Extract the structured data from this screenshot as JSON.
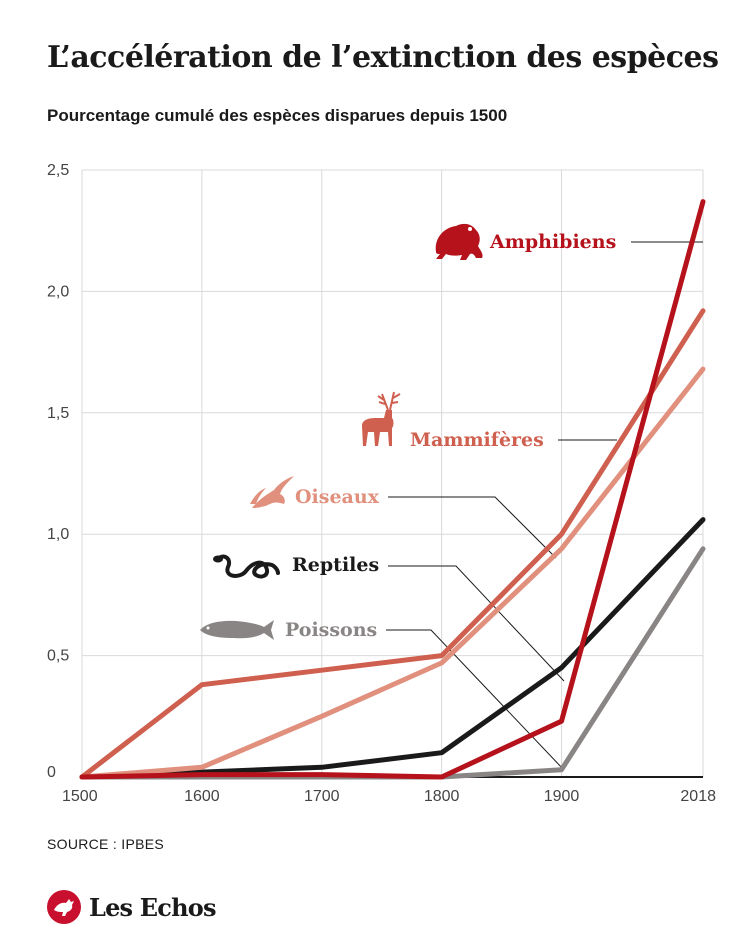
{
  "title": "L’accélération de l’extinction des espèces",
  "subtitle": "Pourcentage cumulé des espèces disparues depuis 1500",
  "source": "SOURCE : IPBES",
  "logo": {
    "text": "Les Echos"
  },
  "colors": {
    "amphibiens": "#b5121b",
    "mammiferes": "#cf5f4e",
    "oiseaux": "#e0907d",
    "reptiles": "#1a1a1a",
    "poissons": "#8a8585",
    "grid": "#d9d9d9",
    "axis": "#1a1a1a"
  },
  "chart_data": {
    "type": "line",
    "title": "L’accélération de l’extinction des espèces",
    "subtitle": "Pourcentage cumulé des espèces disparues depuis 1500",
    "x_ticks": [
      "1500",
      "1600",
      "1700",
      "1800",
      "1900",
      "2018"
    ],
    "y_ticks": [
      "0",
      "0,5",
      "1,0",
      "1,5",
      "2,0",
      "2,5"
    ],
    "xlim": [
      1500,
      2018
    ],
    "ylim": [
      0,
      2.5
    ],
    "grid": true,
    "series": [
      {
        "name": "Amphibiens",
        "color": "#b5121b",
        "icon": "frog-icon",
        "x": [
          1500,
          1600,
          1700,
          1800,
          1900,
          2018
        ],
        "y": [
          0,
          0.01,
          0.01,
          0,
          0.23,
          2.37
        ]
      },
      {
        "name": "Mammifères",
        "color": "#cf5f4e",
        "icon": "deer-icon",
        "x": [
          1500,
          1600,
          1700,
          1800,
          1900,
          2018
        ],
        "y": [
          0,
          0.38,
          0.44,
          0.5,
          1.0,
          1.92
        ]
      },
      {
        "name": "Oiseaux",
        "color": "#e0907d",
        "icon": "swallow-icon",
        "x": [
          1500,
          1600,
          1700,
          1800,
          1900,
          2018
        ],
        "y": [
          0,
          0.04,
          0.25,
          0.47,
          0.94,
          1.68
        ]
      },
      {
        "name": "Reptiles",
        "color": "#1a1a1a",
        "icon": "snake-icon",
        "x": [
          1500,
          1600,
          1700,
          1800,
          1900,
          2018
        ],
        "y": [
          0,
          0.02,
          0.04,
          0.1,
          0.45,
          1.06
        ]
      },
      {
        "name": "Poissons",
        "color": "#8a8585",
        "icon": "fish-icon",
        "x": [
          1500,
          1600,
          1700,
          1800,
          1900,
          2018
        ],
        "y": [
          0,
          0,
          0,
          0,
          0.03,
          0.94
        ]
      }
    ]
  }
}
